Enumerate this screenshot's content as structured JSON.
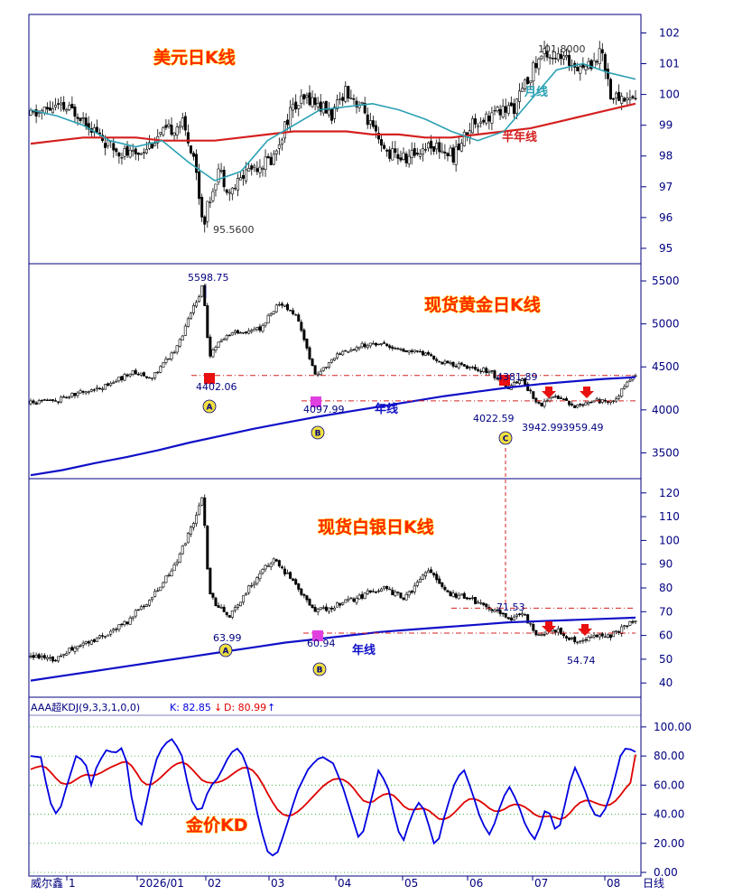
{
  "colors": {
    "frame": "#000080",
    "candle": "#000000",
    "ma_month": "#2aa1b3",
    "ma_half_year": "#d42020",
    "ma_year": "#1010c8",
    "support_line": "#d42020",
    "k_line": "#0000e0",
    "d_line": "#e00000",
    "kd_grid": "#22aa22",
    "title": "#ff2a00",
    "marker_red": "#e81010",
    "marker_magenta": "#e040e0",
    "circle_label": "#f0e040"
  },
  "usd_panel": {
    "title": "美元日K线",
    "y_ticks": [
      "102",
      "101",
      "100",
      "99",
      "98",
      "97",
      "96",
      "95"
    ],
    "high_label": "101.8000",
    "low_label": "95.5600",
    "month_line_label": "月线",
    "half_year_line_label": "半年线"
  },
  "gold_panel": {
    "title": "现货黄金日K线",
    "y_ticks": [
      "5500",
      "5000",
      "4500",
      "4000",
      "3500"
    ],
    "peak_label": "5598.75",
    "label_a": "4402.06",
    "label_b": "4097.99",
    "label_c_high": "4381.89",
    "label_c_low": "4022.59",
    "label_d": "3942.99",
    "label_e": "3959.49",
    "year_line_label": "年线",
    "markers": [
      "A",
      "B",
      "C"
    ]
  },
  "silver_panel": {
    "title": "现货白银日K线",
    "y_ticks": [
      "120",
      "110",
      "100",
      "90",
      "80",
      "70",
      "60",
      "50",
      "40"
    ],
    "label_a": "63.99",
    "label_b": "60.94",
    "label_c": "71.53",
    "label_d": "54.74",
    "year_line_label": "年线",
    "markers": [
      "A",
      "B"
    ]
  },
  "kd_panel": {
    "indicator_name": "AAA超KDJ(9,3,3,1,0,0)",
    "k_text": "K: 82.85",
    "k_arrow": "↓",
    "d_text": "D: 80.99",
    "d_arrow": "↑",
    "title": "金价KD",
    "y_ticks": [
      "100.00",
      "80.00",
      "60.00",
      "40.00",
      "20.00",
      "0.00"
    ]
  },
  "date_axis": {
    "source_label": "威尔鑫",
    "labels": [
      "1",
      "2026/01",
      "02",
      "03",
      "04",
      "05",
      "06",
      "07",
      "08"
    ],
    "period_label": "日线"
  },
  "chart_data": [
    {
      "type": "candlestick",
      "title": "美元日K线",
      "ylim": [
        94.5,
        102.6
      ],
      "series": [
        {
          "name": "月线",
          "values": [
            99.5,
            99.3,
            99.0,
            98.5,
            98.3,
            98.5,
            97.8,
            97.2,
            97.5,
            98.5,
            99.0,
            99.5,
            99.6,
            99.7,
            99.5,
            99.2,
            98.8,
            98.5,
            98.8,
            99.8,
            100.8,
            101.0,
            100.7,
            100.5
          ]
        },
        {
          "name": "半年线",
          "values": [
            98.4,
            98.5,
            98.6,
            98.6,
            98.6,
            98.5,
            98.5,
            98.5,
            98.6,
            98.7,
            98.8,
            98.8,
            98.8,
            98.7,
            98.7,
            98.6,
            98.6,
            98.7,
            98.8,
            98.9,
            99.1,
            99.3,
            99.5,
            99.7
          ]
        }
      ],
      "annotations": {
        "high": 101.8,
        "low": 95.56
      }
    },
    {
      "type": "candlestick",
      "title": "现货黄金日K线",
      "ylim": [
        3200,
        5700
      ],
      "series": [
        {
          "name": "年线",
          "values": [
            3240,
            3300,
            3380,
            3450,
            3530,
            3620,
            3700,
            3780,
            3850,
            3920,
            3980,
            4040,
            4100,
            4160,
            4210,
            4260,
            4300,
            4330,
            4360,
            4380
          ]
        }
      ],
      "annotations": {
        "peak": 5598.75,
        "A": 4402.06,
        "B": 4097.99,
        "C_high": 4381.89,
        "C_low": 4022.59,
        "D": 3942.99,
        "E": 3959.49
      }
    },
    {
      "type": "candlestick",
      "title": "现货白银日K线",
      "ylim": [
        34,
        126
      ],
      "series": [
        {
          "name": "年线",
          "values": [
            41,
            43,
            45,
            47,
            49,
            51,
            53,
            55,
            57,
            58.5,
            60,
            61.5,
            62.5,
            63.5,
            64.5,
            65.5,
            66,
            66.5,
            67,
            67.5
          ]
        }
      ],
      "annotations": {
        "A": 63.99,
        "B": 60.94,
        "C": 71.53,
        "D": 54.74
      }
    },
    {
      "type": "line",
      "title": "金价KD",
      "ylim": [
        0,
        100
      ],
      "series": [
        {
          "name": "K",
          "last": 82.85
        },
        {
          "name": "D",
          "last": 80.99
        }
      ]
    }
  ]
}
